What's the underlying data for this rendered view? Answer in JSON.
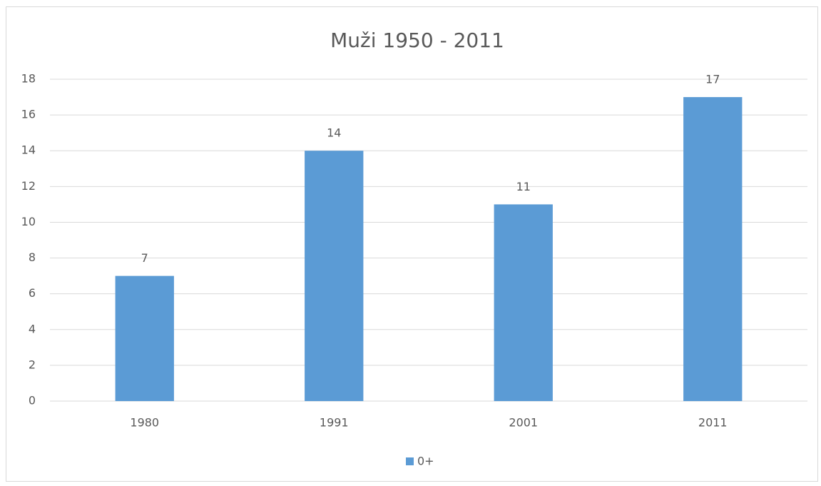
{
  "chart_data": {
    "type": "bar",
    "title": "Muži 1950 - 2011",
    "categories": [
      "1980",
      "1991",
      "2001",
      "2011"
    ],
    "series": [
      {
        "name": "0+",
        "color": "#5b9bd5",
        "values": [
          7,
          14,
          11,
          17
        ]
      }
    ],
    "ylim": [
      0,
      18
    ],
    "yticks": [
      0,
      2,
      4,
      6,
      8,
      10,
      12,
      14,
      16,
      18
    ],
    "grid": true,
    "legend": "bottom"
  }
}
